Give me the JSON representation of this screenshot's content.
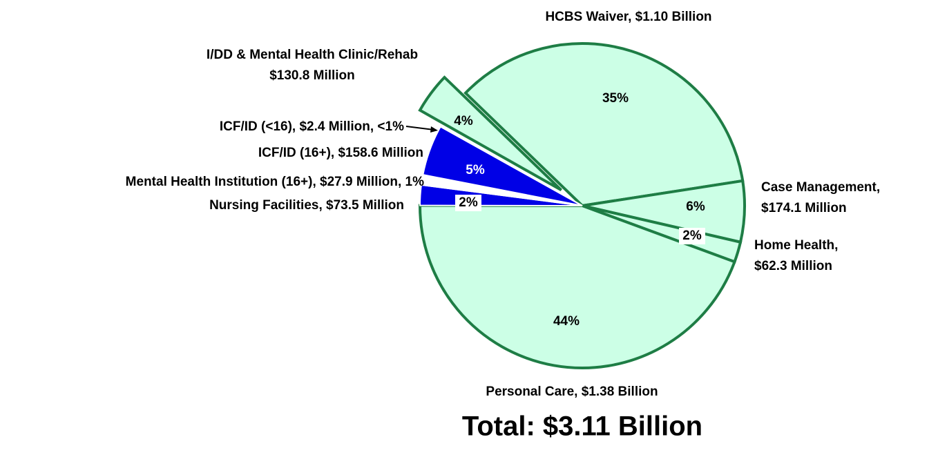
{
  "chart_data": {
    "type": "pie",
    "title": "Total: $3.11 Billion",
    "categories": [
      [
        "HCBS Waiver, $1.10 Billion"
      ],
      [
        "Case Management,",
        "$174.1 Million"
      ],
      [
        "Home Health,",
        "$62.3 Million"
      ],
      [
        "Personal Care, $1.38 Billion"
      ],
      [
        "Nursing Facilities, $73.5 Million"
      ],
      [
        "Mental Health Institution (16+), $27.9 Million, 1%"
      ],
      [
        "ICF/ID (16+), $158.6 Million"
      ],
      [
        "ICF/ID (<16), $2.4 Million, <1%"
      ],
      [
        "I/DD & Mental Health Clinic/Rehab",
        "$130.8 Million"
      ]
    ],
    "values": [
      35,
      6,
      2,
      44,
      2,
      1,
      5,
      0.08,
      4
    ],
    "value_labels": [
      "35%",
      "6%",
      "2%",
      "44%",
      "2%",
      null,
      "5%",
      null,
      "4%"
    ],
    "colors": [
      "#ccffe6",
      "#ccffe6",
      "#ccffe6",
      "#ccffe6",
      "#0000e6",
      "#ffffff",
      "#0000e6",
      "#0000e6",
      "#ccffe6"
    ],
    "edge_color": "#1e7d45",
    "exploded": [
      8
    ]
  }
}
